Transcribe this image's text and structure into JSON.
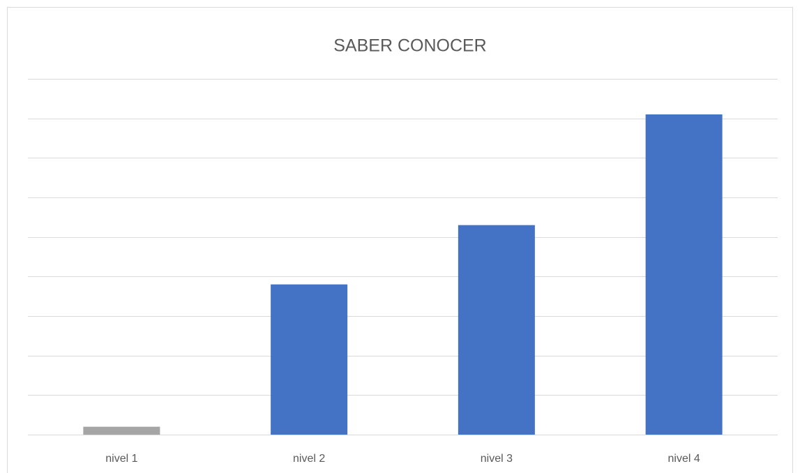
{
  "chart_data": {
    "type": "bar",
    "title": "SABER CONOCER",
    "categories": [
      "nivel 1",
      "nivel 2",
      "nivel 3",
      "nivel 4"
    ],
    "values": [
      0.2,
      3.8,
      5.3,
      8.1
    ],
    "colors": [
      "#a5a5a5",
      "#4472c4",
      "#4472c4",
      "#4472c4"
    ],
    "ylim": [
      0,
      9
    ],
    "yticks": [
      0,
      1,
      2,
      3,
      4,
      5,
      6,
      7,
      8,
      9
    ],
    "grid": true
  }
}
